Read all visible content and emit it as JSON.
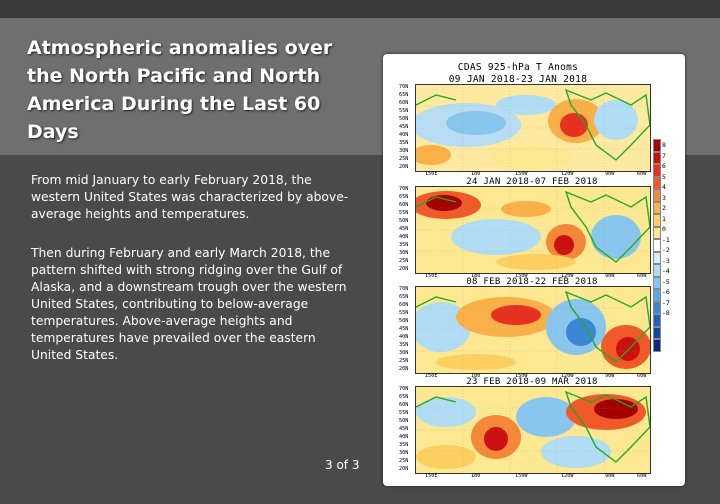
{
  "slide": {
    "title": "Atmospheric anomalies over the North Pacific and North America During the Last 60 Days",
    "paragraph1": "From mid January to early February 2018, the western United States was characterized by above-average heights and temperatures.",
    "paragraph2": "Then during February and early March 2018, the pattern shifted with strong ridging over the Gulf of Alaska, and a downstream trough over the western United States, contributing to below-average temperatures.  Above-average heights and temperatures have prevailed over the eastern United States.",
    "page_number": "3 of 3"
  },
  "figure": {
    "title_line1": "CDAS 925-hPa T Anoms",
    "panels": [
      {
        "label": "09 JAN 2018-23 JAN 2018"
      },
      {
        "label": "24 JAN 2018-07 FEB 2018"
      },
      {
        "label": "08 FEB 2018-22 FEB 2018"
      },
      {
        "label": "23 FEB 2018-09 MAR 2018"
      }
    ],
    "lat_labels": [
      "70N",
      "65N",
      "60N",
      "55N",
      "50N",
      "45N",
      "40N",
      "35N",
      "30N",
      "25N",
      "20N"
    ],
    "lon_labels": [
      "150E",
      "180",
      "150W",
      "120W",
      "90W",
      "60W"
    ],
    "colorbar": {
      "labels": [
        "8",
        "7",
        "6",
        "5",
        "4",
        "3",
        "2",
        "1",
        "0",
        "-1",
        "-2",
        "-3",
        "-4",
        "-5",
        "-6",
        "-7",
        "-8"
      ],
      "colors": [
        "#a50000",
        "#cc1010",
        "#e63020",
        "#f05a28",
        "#f58838",
        "#f9b048",
        "#fbd060",
        "#fbe890",
        "#ffffff",
        "#d8eefa",
        "#b0dcf4",
        "#88c6ee",
        "#5fa8e2",
        "#3a86d4",
        "#2060bc",
        "#1446a0",
        "#0a2a80"
      ]
    }
  }
}
